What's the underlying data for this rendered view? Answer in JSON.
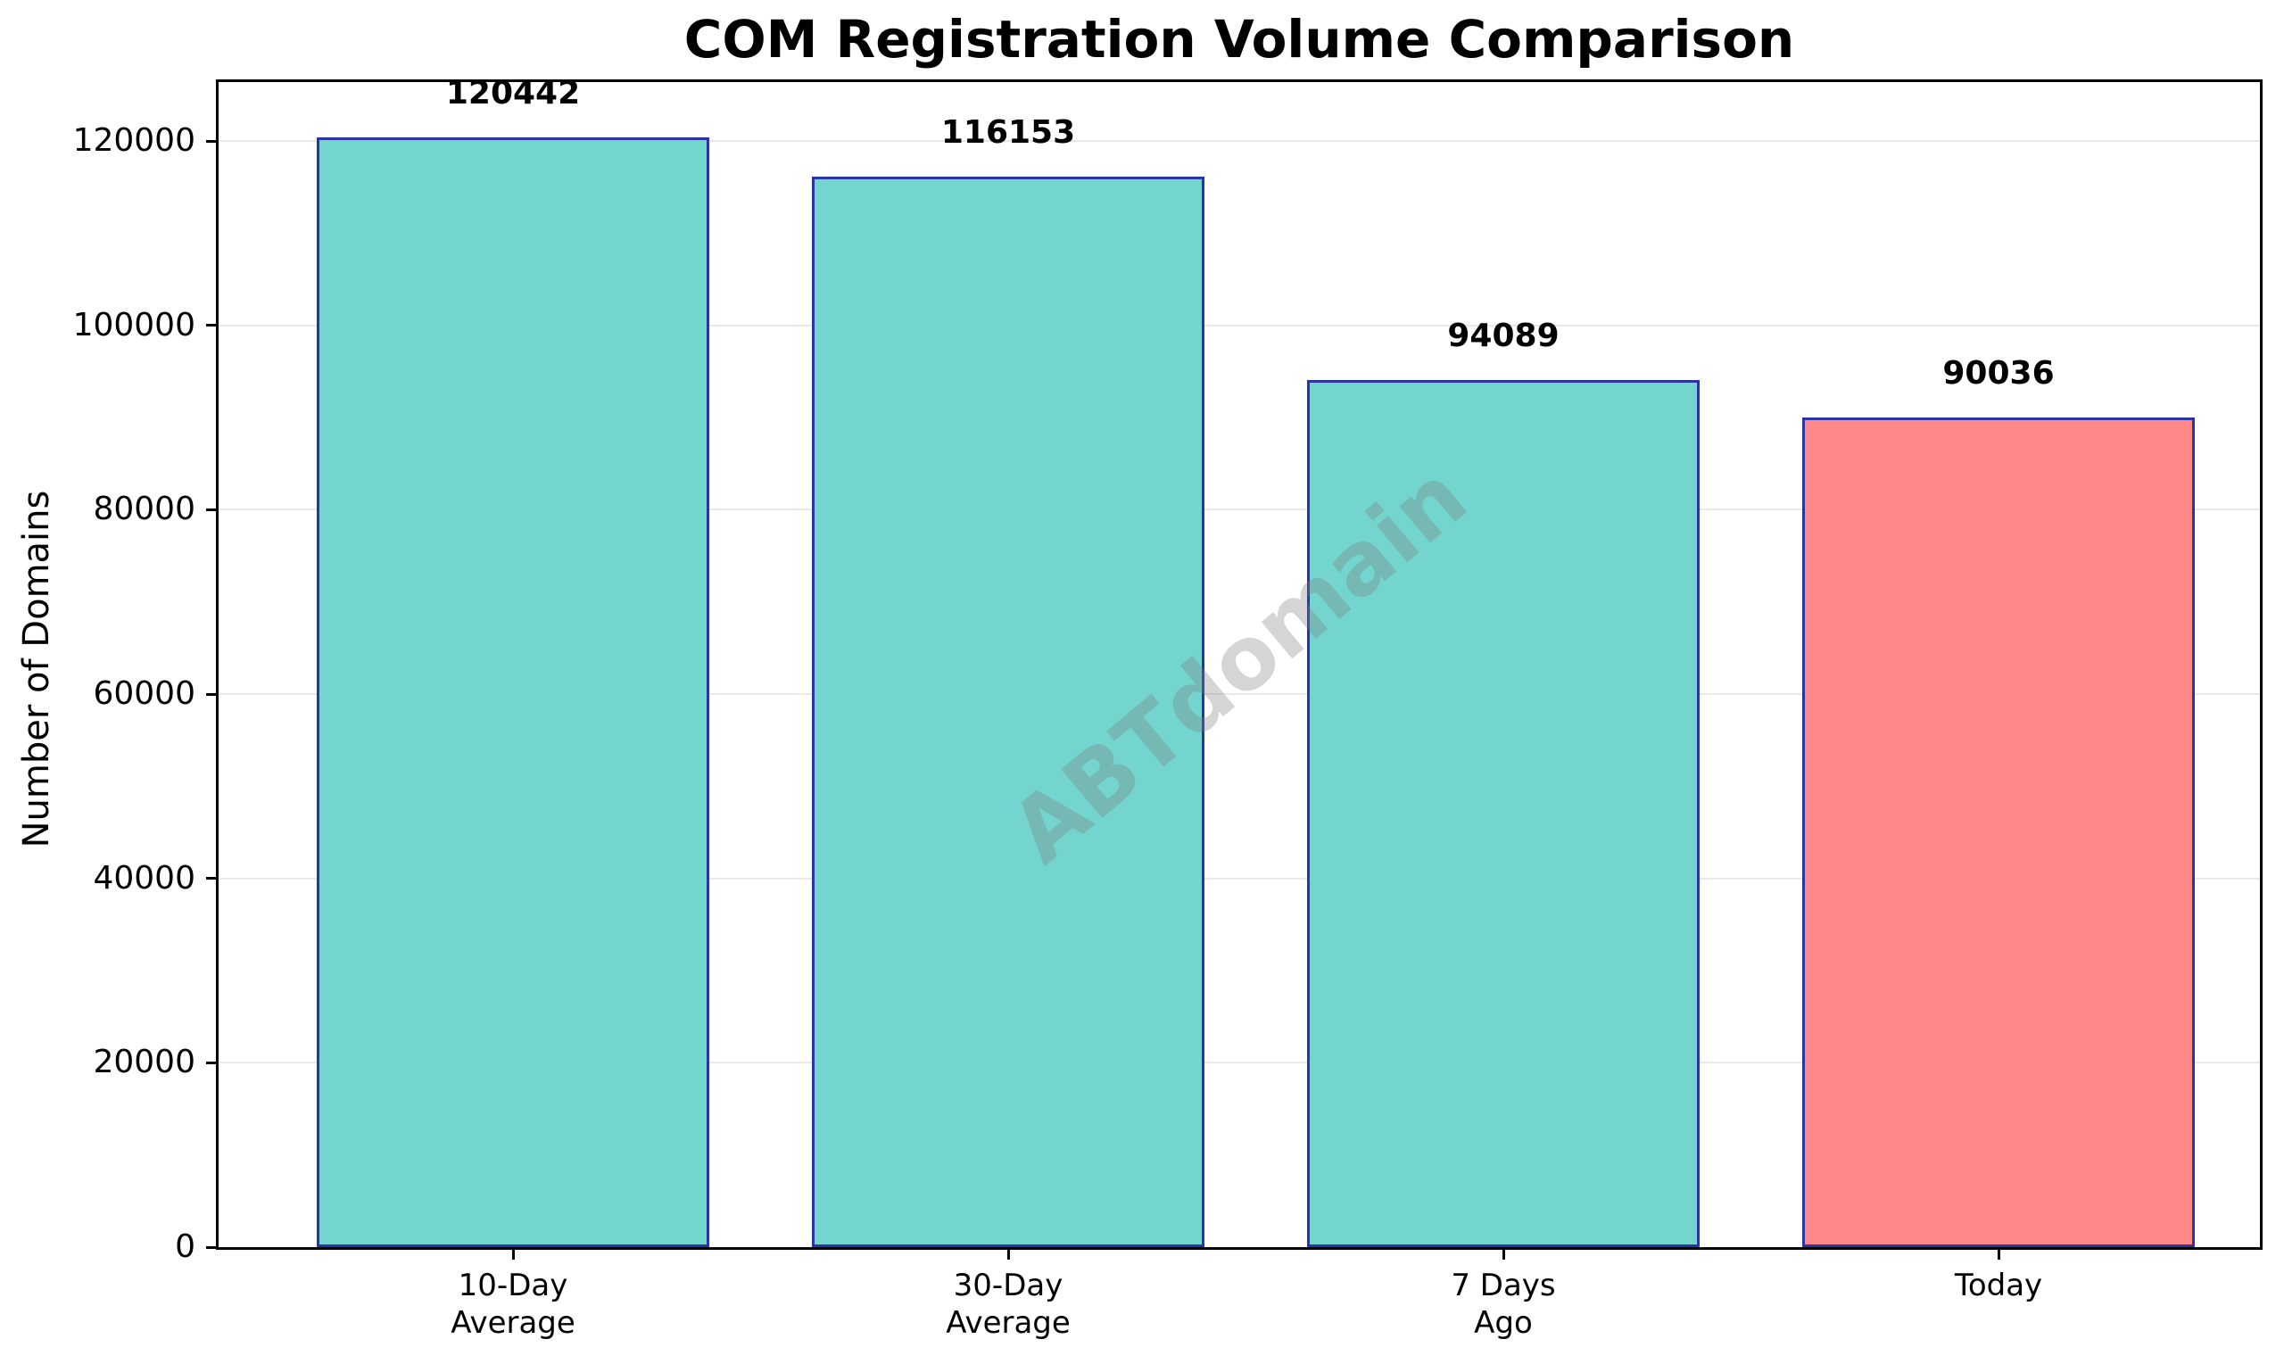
{
  "figure": {
    "title": "COM Registration Volume Comparison",
    "y_axis_label": "Number of Domains",
    "watermark": "ABTdomain"
  },
  "chart_data": {
    "type": "bar",
    "title": "COM Registration Volume Comparison",
    "xlabel": "",
    "ylabel": "Number of Domains",
    "categories": [
      "10-Day Average",
      "30-Day Average",
      "7 Days Ago",
      "Today"
    ],
    "category_label_lines": [
      [
        "10-Day",
        "Average"
      ],
      [
        "30-Day",
        "Average"
      ],
      [
        "7 Days",
        "Ago"
      ],
      [
        "Today"
      ]
    ],
    "values": [
      120442,
      116153,
      94089,
      90036
    ],
    "bar_value_labels": [
      "120442",
      "116153",
      "94089",
      "90036"
    ],
    "yticks": [
      0,
      20000,
      40000,
      60000,
      80000,
      100000,
      120000
    ],
    "ytick_labels": [
      "0",
      "20000",
      "40000",
      "60000",
      "80000",
      "100000",
      "120000"
    ],
    "ylim": [
      0,
      126400
    ],
    "grid": "horizontal-only",
    "legend": "none",
    "watermark_text": "ABTdomain",
    "colors": {
      "bar_fill": [
        "#73D5CD",
        "#73D5CD",
        "#73D5CD",
        "#FF8888"
      ],
      "bar_edge": "#2A34A4",
      "gridline": "#e9e9e9",
      "axis_frame": "#000000",
      "text": "#000000",
      "background": "#ffffff"
    }
  }
}
